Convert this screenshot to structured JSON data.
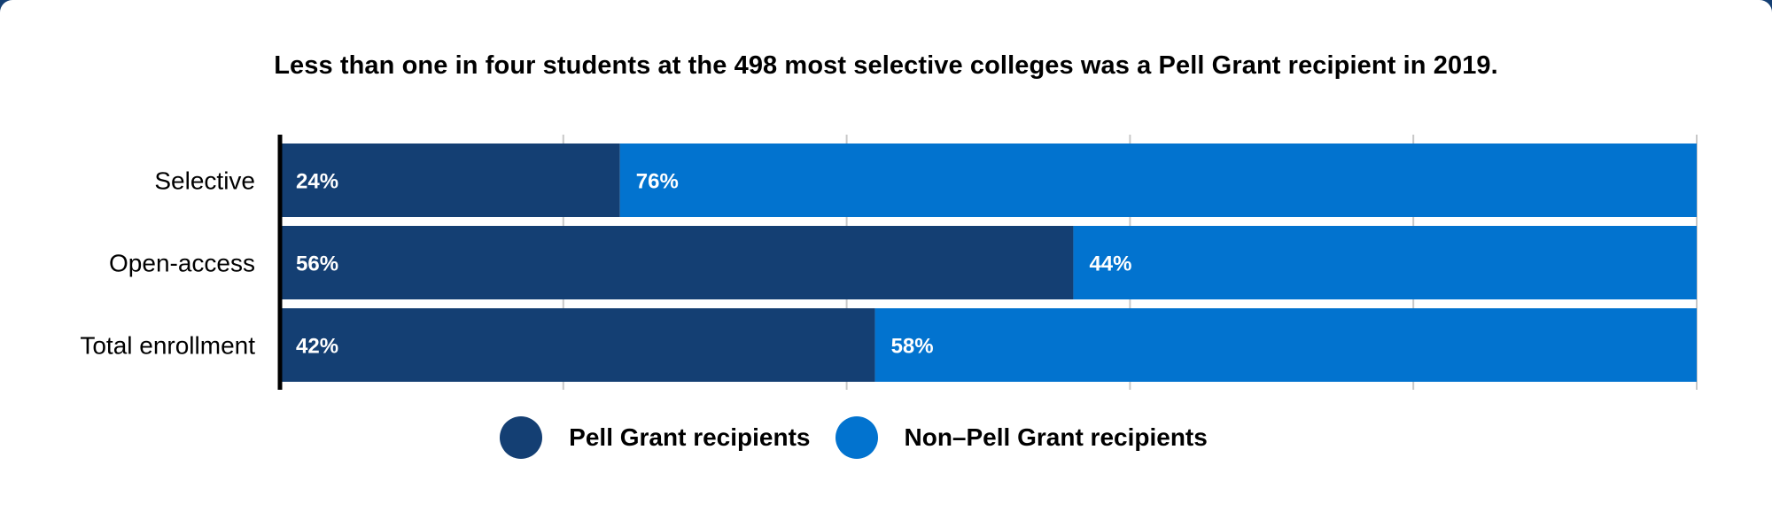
{
  "chart_data": {
    "type": "bar",
    "orientation": "horizontal",
    "stacked": true,
    "title": "Less than one in four students at the 498 most selective colleges was a Pell Grant recipient in 2019.",
    "xlabel": "",
    "ylabel": "",
    "categories": [
      "Selective",
      "Open-access",
      "Total enrollment"
    ],
    "xlim": [
      0,
      100
    ],
    "grid": true,
    "legend_position": "bottom",
    "series": [
      {
        "name": "Pell Grant recipients",
        "values": [
          24,
          56,
          42
        ],
        "labels": [
          "24%",
          "56%",
          "42%"
        ],
        "color": "#143f73"
      },
      {
        "name": "Non–Pell Grant recipients",
        "values": [
          76,
          44,
          58
        ],
        "labels": [
          "76%",
          "44%",
          "58%"
        ],
        "color": "#0273cf"
      }
    ]
  },
  "colors": {
    "frame": "#143f73",
    "gridline": "#c8c8c8",
    "axis": "#000000",
    "bar_label": "#ffffff"
  }
}
